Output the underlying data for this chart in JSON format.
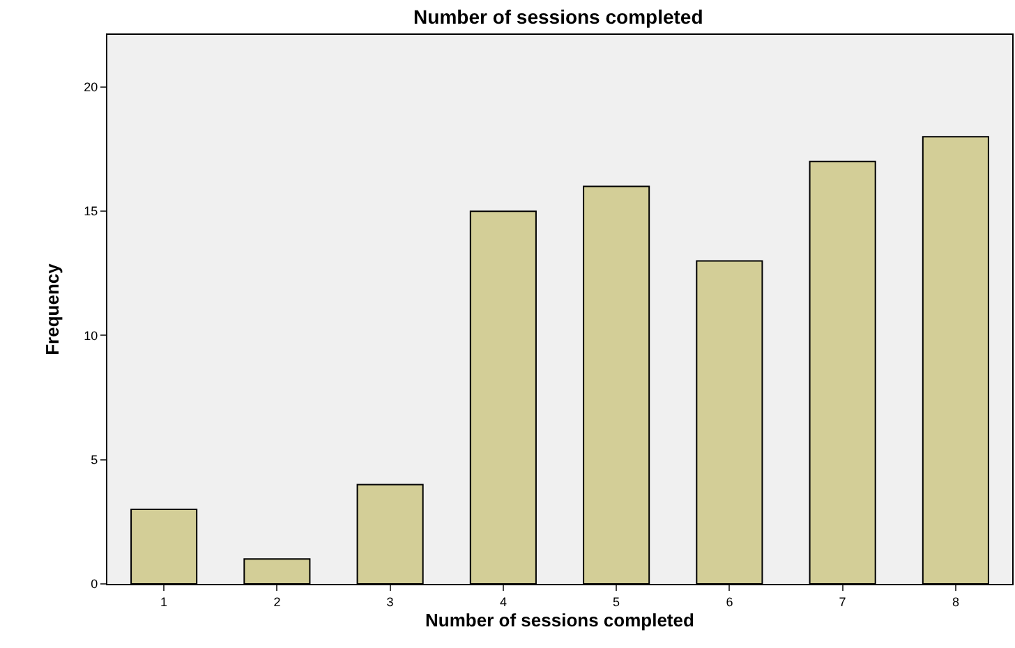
{
  "chart_data": {
    "type": "bar",
    "title": "Number of sessions completed",
    "xlabel": "Number of sessions completed",
    "ylabel": "Frequency",
    "categories": [
      "1",
      "2",
      "3",
      "4",
      "5",
      "6",
      "7",
      "8"
    ],
    "values": [
      3,
      1,
      4,
      15,
      16,
      13,
      17,
      18
    ],
    "color": "#d3ce97",
    "ylim": [
      0,
      22.1
    ],
    "yticks": [
      0,
      5,
      10,
      15,
      20
    ],
    "grid": false
  }
}
